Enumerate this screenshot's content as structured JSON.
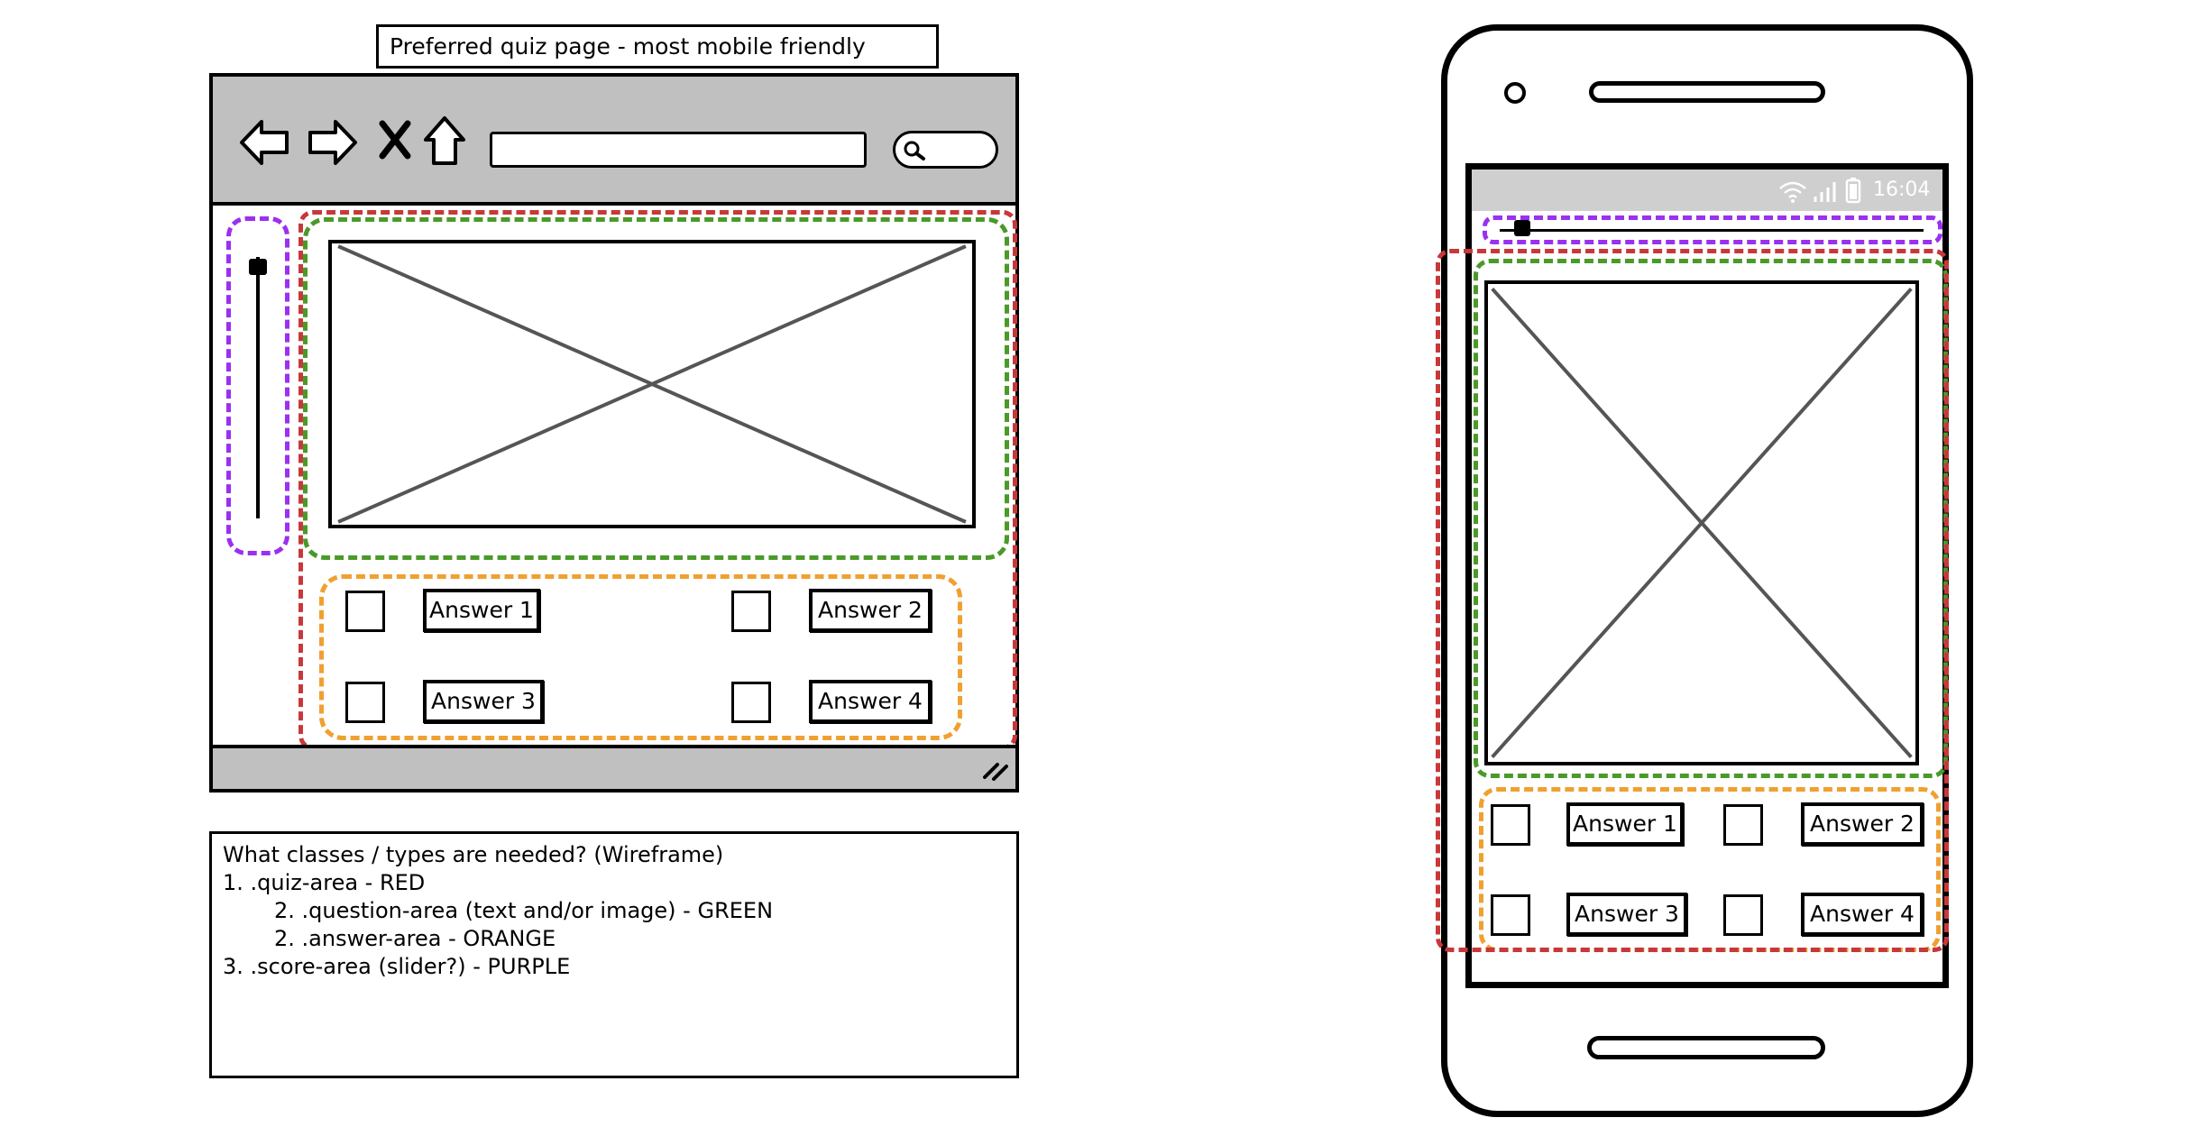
{
  "title": "Preferred quiz page - most mobile friendly",
  "browser": {
    "icons": [
      "back-arrow-icon",
      "forward-arrow-icon",
      "close-icon",
      "home-icon",
      "search-icon",
      "resize-grip-icon"
    ]
  },
  "answers": [
    "Answer 1",
    "Answer 2",
    "Answer 3",
    "Answer 4"
  ],
  "notes": {
    "heading": "What classes / types are needed? (Wireframe)",
    "line1": "1. .quiz-area - RED",
    "line2": "2. .question-area (text and/or image) - GREEN",
    "line3": "2. .answer-area - ORANGE",
    "line4": "3. .score-area (slider?) - PURPLE"
  },
  "phone": {
    "time": "16:04",
    "status_icons": [
      "wifi-icon",
      "signal-icon",
      "battery-icon"
    ],
    "answers": [
      "Answer 1",
      "Answer 2",
      "Answer 3",
      "Answer 4"
    ]
  },
  "colors": {
    "quiz_area": "#c8383a",
    "question_area": "#4a9a2a",
    "answer_area": "#f0a030",
    "score_area": "#9b30f0",
    "chrome_gray": "#c0c0c0"
  }
}
